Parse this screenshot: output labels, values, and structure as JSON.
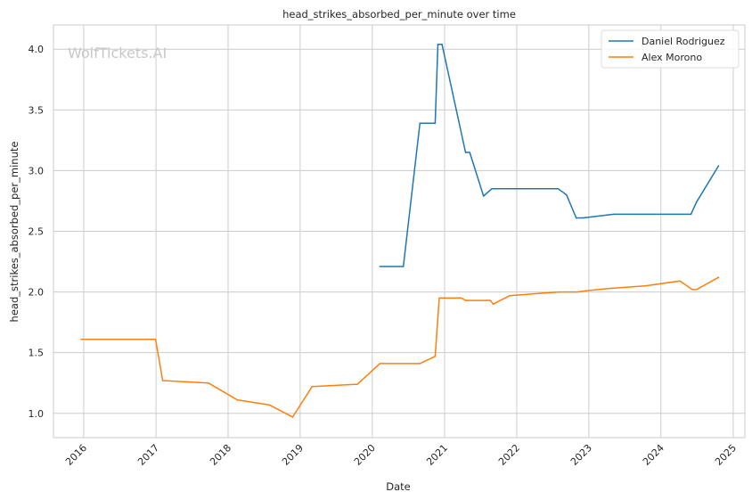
{
  "watermark": "WolfTickets.AI",
  "chart_data": {
    "type": "line",
    "title": "head_strikes_absorbed_per_minute over time",
    "xlabel": "Date",
    "ylabel": "head_strikes_absorbed_per_minute",
    "xlim": [
      "2015-08-01",
      "2025-03-01"
    ],
    "ylim": [
      0.8,
      4.2
    ],
    "x_ticks": [
      "2016",
      "2017",
      "2018",
      "2019",
      "2020",
      "2021",
      "2022",
      "2023",
      "2024",
      "2025"
    ],
    "y_ticks": [
      "1.0",
      "1.5",
      "2.0",
      "2.5",
      "3.0",
      "3.5",
      "4.0"
    ],
    "grid": true,
    "legend_position": "top-right",
    "series": [
      {
        "name": "Daniel Rodriguez",
        "color": "#1f77b4",
        "points": [
          [
            "2020-02-08",
            2.21
          ],
          [
            "2020-06-06",
            2.21
          ],
          [
            "2020-08-29",
            3.39
          ],
          [
            "2020-11-14",
            3.39
          ],
          [
            "2020-11-28",
            4.04
          ],
          [
            "2020-12-19",
            4.04
          ],
          [
            "2021-04-17",
            3.15
          ],
          [
            "2021-05-08",
            3.15
          ],
          [
            "2021-07-17",
            2.79
          ],
          [
            "2021-08-28",
            2.85
          ],
          [
            "2022-07-30",
            2.85
          ],
          [
            "2022-09-10",
            2.8
          ],
          [
            "2022-10-29",
            2.61
          ],
          [
            "2022-12-03",
            2.61
          ],
          [
            "2023-05-06",
            2.64
          ],
          [
            "2024-06-01",
            2.64
          ],
          [
            "2024-06-29",
            2.74
          ],
          [
            "2024-10-19",
            3.04
          ]
        ]
      },
      {
        "name": "Alex Morono",
        "color": "#ff7f0e",
        "points": [
          [
            "2015-12-19",
            1.61
          ],
          [
            "2016-12-30",
            1.61
          ],
          [
            "2017-02-04",
            1.27
          ],
          [
            "2017-09-23",
            1.25
          ],
          [
            "2018-02-18",
            1.11
          ],
          [
            "2018-07-28",
            1.07
          ],
          [
            "2018-11-24",
            0.97
          ],
          [
            "2019-03-02",
            1.22
          ],
          [
            "2019-10-18",
            1.24
          ],
          [
            "2020-02-08",
            1.41
          ],
          [
            "2020-08-29",
            1.41
          ],
          [
            "2020-11-14",
            1.47
          ],
          [
            "2020-12-05",
            1.95
          ],
          [
            "2021-03-27",
            1.95
          ],
          [
            "2021-04-17",
            1.93
          ],
          [
            "2021-08-21",
            1.93
          ],
          [
            "2021-09-04",
            1.9
          ],
          [
            "2021-11-27",
            1.97
          ],
          [
            "2022-05-07",
            1.99
          ],
          [
            "2022-08-06",
            2.0
          ],
          [
            "2022-11-05",
            2.0
          ],
          [
            "2022-12-17",
            2.01
          ],
          [
            "2023-04-22",
            2.03
          ],
          [
            "2023-10-14",
            2.05
          ],
          [
            "2024-04-06",
            2.09
          ],
          [
            "2024-06-08",
            2.02
          ],
          [
            "2024-06-29",
            2.02
          ],
          [
            "2024-10-19",
            2.12
          ]
        ]
      }
    ]
  }
}
